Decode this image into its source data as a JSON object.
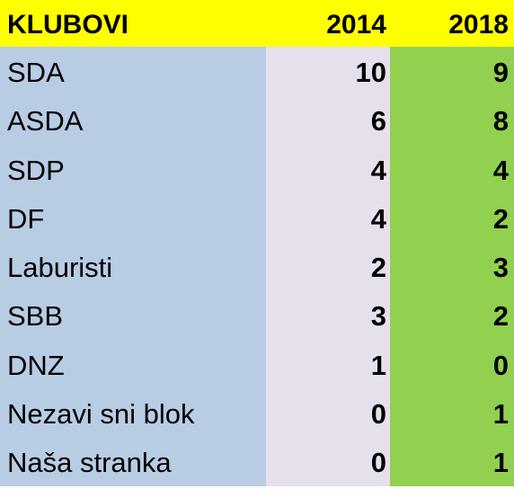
{
  "header": {
    "name_label": "KLUBOVI",
    "year1": "2014",
    "year2": "2018"
  },
  "rows": [
    {
      "name": "SDA",
      "y2014": "10",
      "y2018": "9"
    },
    {
      "name": "ASDA",
      "y2014": "6",
      "y2018": "8"
    },
    {
      "name": "SDP",
      "y2014": "4",
      "y2018": "4"
    },
    {
      "name": "DF",
      "y2014": "4",
      "y2018": "2"
    },
    {
      "name": "Laburisti",
      "y2014": "2",
      "y2018": "3"
    },
    {
      "name": "SBB",
      "y2014": "3",
      "y2018": "2"
    },
    {
      "name": "DNZ",
      "y2014": "1",
      "y2018": "0"
    },
    {
      "name": "Nezavi sni blok",
      "y2014": "0",
      "y2018": "1"
    },
    {
      "name": "Naša stranka",
      "y2014": "0",
      "y2018": "1"
    }
  ],
  "colors": {
    "header_bg": "#ffff00",
    "name_col_bg": "#b8cce4",
    "year1_col_bg": "#e6e0ec",
    "year2_col_bg": "#92d050"
  }
}
